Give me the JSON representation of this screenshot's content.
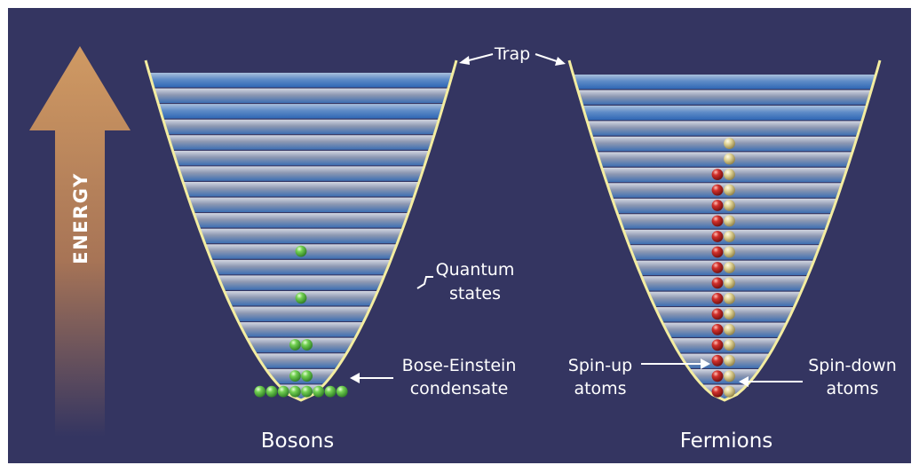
{
  "energy_label": "ENERGY",
  "trap_label": "Trap",
  "quantum_states_label": [
    "Quantum",
    "states"
  ],
  "bec_label": [
    "Bose-Einstein",
    "condensate"
  ],
  "spin_up_label": [
    "Spin-up",
    "atoms"
  ],
  "spin_down_label": [
    "Spin-down",
    "atoms"
  ],
  "bosons_label": "Bosons",
  "fermions_label": "Fermions",
  "colors": {
    "background": "#343561",
    "trap_outline": "#f4eda0",
    "arrow": "#c9905c",
    "boson": "#5fc045",
    "spin_up": "#c22a27",
    "spin_down": "#ddd08c",
    "level_blue": "#3e74b8",
    "level_gray": "#a8adbd"
  },
  "boson_occupancy": [
    {
      "level": 0,
      "count": 8
    },
    {
      "level": 1,
      "count": 2
    },
    {
      "level": 3,
      "count": 2
    },
    {
      "level": 6,
      "count": 1
    },
    {
      "level": 9,
      "count": 1
    }
  ],
  "fermion_occupancy": {
    "spin_up_levels": 15,
    "spin_down_levels": 17
  }
}
